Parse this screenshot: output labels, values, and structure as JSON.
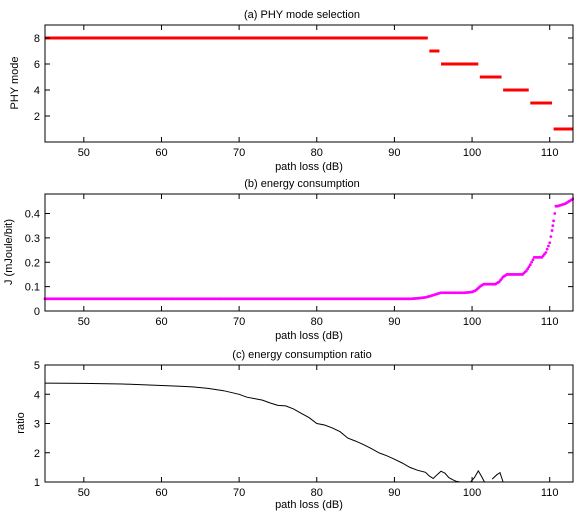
{
  "figure": {
    "background": "#ffffff",
    "axis_color": "#000000"
  },
  "chart_data": [
    {
      "type": "scatter",
      "title": "(a) PHY mode selection",
      "xlabel": "path loss (dB)",
      "ylabel": "PHY mode",
      "xlim": [
        45,
        113
      ],
      "ylim": [
        0,
        9
      ],
      "xticks": [
        50,
        60,
        70,
        80,
        90,
        100,
        110
      ],
      "yticks": [
        2,
        4,
        6,
        8
      ],
      "grid": false,
      "color": "#ff0000",
      "series": [
        {
          "segments": [
            {
              "x": [
                45,
                94.3
              ],
              "y": 8
            },
            {
              "x": [
                94.5,
                95.8
              ],
              "y": 7
            },
            {
              "x": [
                96.0,
                100.8
              ],
              "y": 6
            },
            {
              "x": [
                101.0,
                103.8
              ],
              "y": 5
            },
            {
              "x": [
                104.0,
                107.3
              ],
              "y": 4
            },
            {
              "x": [
                107.5,
                110.3
              ],
              "y": 3
            },
            {
              "x": [
                110.5,
                113
              ],
              "y": 1
            }
          ]
        }
      ]
    },
    {
      "type": "scatter",
      "title": "(b) energy consumption",
      "xlabel": "path loss (dB)",
      "ylabel": "J (mJoule/bit)",
      "xlim": [
        45,
        113
      ],
      "ylim": [
        0,
        0.48
      ],
      "xticks": [
        50,
        60,
        70,
        80,
        90,
        100,
        110
      ],
      "yticks": [
        0,
        0.1,
        0.2,
        0.3,
        0.4
      ],
      "grid": false,
      "color": "#ff00ff",
      "series": [
        {
          "x": [
            45,
            92,
            93,
            94,
            94.5,
            95,
            95.5,
            96,
            99,
            100,
            100.5,
            101,
            101.5,
            103,
            103.5,
            104,
            104.5,
            106.5,
            107,
            107.5,
            108,
            109,
            109.5,
            110,
            110.3,
            110.5,
            110.8,
            111,
            112,
            113
          ],
          "y": [
            0.05,
            0.05,
            0.052,
            0.056,
            0.06,
            0.065,
            0.07,
            0.075,
            0.075,
            0.078,
            0.085,
            0.1,
            0.11,
            0.11,
            0.12,
            0.14,
            0.15,
            0.15,
            0.165,
            0.19,
            0.22,
            0.22,
            0.24,
            0.28,
            0.33,
            0.37,
            0.43,
            0.43,
            0.44,
            0.46
          ]
        }
      ]
    },
    {
      "type": "line",
      "title": "(c) energy consumption ratio",
      "xlabel": "path loss (dB)",
      "ylabel": "ratio",
      "xlim": [
        45,
        113
      ],
      "ylim": [
        1,
        5
      ],
      "xticks": [
        50,
        60,
        70,
        80,
        90,
        100,
        110
      ],
      "yticks": [
        1,
        2,
        3,
        4,
        5
      ],
      "grid": false,
      "color": "#000000",
      "series": [
        {
          "x": [
            45,
            50,
            55,
            60,
            62,
            64,
            66,
            68,
            70,
            71,
            72,
            73,
            74,
            75,
            76,
            77,
            78,
            79,
            80,
            81,
            82,
            83,
            84,
            85,
            86,
            87,
            88,
            89,
            90,
            91,
            92,
            93,
            94,
            94.5,
            95,
            95.5,
            96,
            96.5,
            97,
            97.5,
            98,
            98.5
          ],
          "y": [
            4.38,
            4.37,
            4.35,
            4.3,
            4.28,
            4.25,
            4.2,
            4.12,
            4.0,
            3.9,
            3.85,
            3.8,
            3.7,
            3.62,
            3.6,
            3.5,
            3.35,
            3.2,
            3.0,
            2.95,
            2.85,
            2.72,
            2.5,
            2.4,
            2.28,
            2.15,
            2.0,
            1.9,
            1.78,
            1.65,
            1.5,
            1.4,
            1.33,
            1.2,
            1.12,
            1.25,
            1.37,
            1.3,
            1.15,
            1.08,
            1.02,
            1.0
          ]
        },
        {
          "x": [
            99.8,
            100.3,
            100.8,
            101.2,
            101.6
          ],
          "y": [
            1.0,
            1.15,
            1.38,
            1.2,
            1.0
          ]
        },
        {
          "x": [
            102.6,
            103.2,
            103.6,
            104.0
          ],
          "y": [
            1.1,
            1.25,
            1.32,
            1.0
          ]
        }
      ]
    }
  ]
}
